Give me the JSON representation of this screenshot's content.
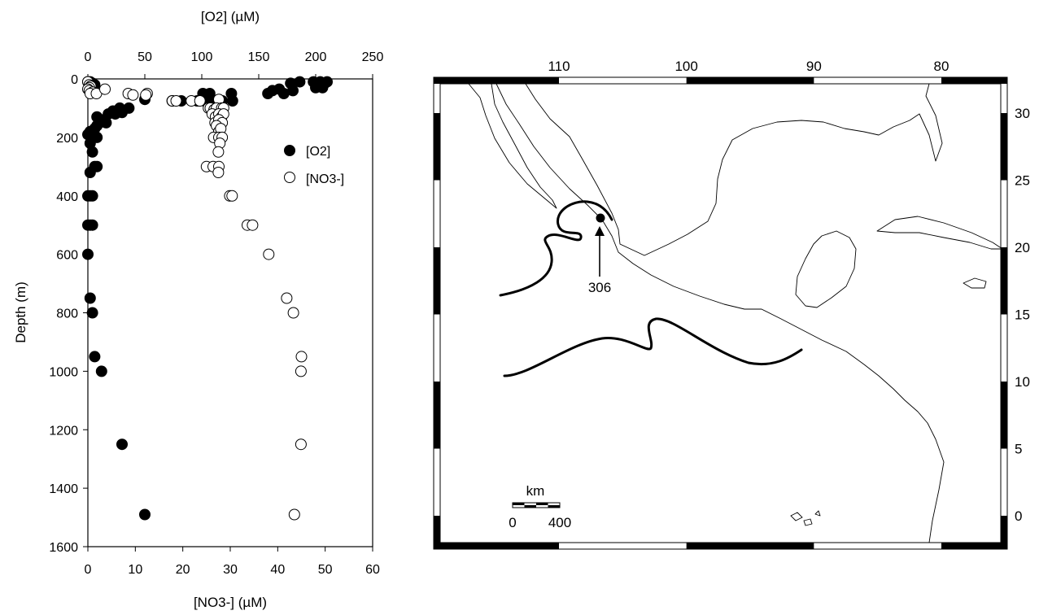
{
  "chart_data": [
    {
      "type": "scatter",
      "x_top_label": "[O2] (µM)",
      "x_bottom_label": "[NO3-] (µM)",
      "ylabel": "Depth (m)",
      "x_top_lim": [
        0,
        250
      ],
      "x_bottom_lim": [
        0,
        60
      ],
      "ylim": [
        1600,
        0
      ],
      "x_top_ticks": [
        "0",
        "50",
        "100",
        "150",
        "200",
        "250"
      ],
      "x_bottom_ticks": [
        "0",
        "10",
        "20",
        "30",
        "40",
        "50",
        "60"
      ],
      "y_ticks": [
        "0",
        "200",
        "400",
        "600",
        "800",
        "1000",
        "1200",
        "1400",
        "1600"
      ],
      "legend": {
        "placement": "right",
        "o2": "[O2]",
        "no3": "[NO3-]"
      },
      "series": [
        {
          "name": "[O2]",
          "axis": "top",
          "marker": "filled",
          "points": [
            [
              0,
              10
            ],
            [
              2,
              10
            ],
            [
              4,
              15
            ],
            [
              6,
              20
            ],
            [
              178,
              15
            ],
            [
              186,
              10
            ],
            [
              198,
              10
            ],
            [
              204,
              10
            ],
            [
              208,
              15
            ],
            [
              210,
              10
            ],
            [
              205,
              25
            ],
            [
              200,
              30
            ],
            [
              206,
              30
            ],
            [
              158,
              50
            ],
            [
              172,
              50
            ],
            [
              162,
              40
            ],
            [
              180,
              40
            ],
            [
              168,
              35
            ],
            [
              101,
              50
            ],
            [
              107,
              50
            ],
            [
              126,
              50
            ],
            [
              74,
              75
            ],
            [
              82,
              75
            ],
            [
              96,
              75
            ],
            [
              102,
              75
            ],
            [
              107,
              75
            ],
            [
              118,
              75
            ],
            [
              127,
              75
            ],
            [
              50,
              70
            ],
            [
              36,
              100
            ],
            [
              28,
              100
            ],
            [
              22,
              110
            ],
            [
              18,
              120
            ],
            [
              24,
              120
            ],
            [
              30,
              115
            ],
            [
              8,
              130
            ],
            [
              12,
              140
            ],
            [
              16,
              150
            ],
            [
              10,
              150
            ],
            [
              8,
              160
            ],
            [
              6,
              170
            ],
            [
              4,
              180
            ],
            [
              2,
              180
            ],
            [
              0,
              190
            ],
            [
              4,
              200
            ],
            [
              8,
              200
            ],
            [
              2,
              220
            ],
            [
              4,
              250
            ],
            [
              6,
              300
            ],
            [
              8,
              300
            ],
            [
              2,
              320
            ],
            [
              4,
              400
            ],
            [
              2,
              400
            ],
            [
              0,
              400
            ],
            [
              2,
              500
            ],
            [
              4,
              500
            ],
            [
              0,
              500
            ],
            [
              0,
              600
            ],
            [
              2,
              750
            ],
            [
              4,
              800
            ],
            [
              6,
              950
            ],
            [
              12,
              1000
            ],
            [
              30,
              1250
            ],
            [
              50,
              1490
            ]
          ]
        },
        {
          "name": "[NO3-]",
          "axis": "bottom",
          "marker": "open",
          "points": [
            [
              0,
              10
            ],
            [
              0.3,
              20
            ],
            [
              0.6,
              25
            ],
            [
              0.3,
              30
            ],
            [
              0,
              35
            ],
            [
              0.3,
              40
            ],
            [
              1,
              45
            ],
            [
              0.5,
              50
            ],
            [
              1.8,
              50
            ],
            [
              3.6,
              35
            ],
            [
              8.5,
              50
            ],
            [
              9.5,
              55
            ],
            [
              12.5,
              50
            ],
            [
              12.2,
              55
            ],
            [
              17.8,
              75
            ],
            [
              18.6,
              75
            ],
            [
              21.8,
              75
            ],
            [
              23.6,
              75
            ],
            [
              27.6,
              70
            ],
            [
              25.4,
              100
            ],
            [
              25.8,
              100
            ],
            [
              26.6,
              105
            ],
            [
              27.1,
              100
            ],
            [
              28.2,
              100
            ],
            [
              28.6,
              100
            ],
            [
              26.2,
              120
            ],
            [
              26.9,
              130
            ],
            [
              27.6,
              120
            ],
            [
              28.2,
              130
            ],
            [
              28.6,
              120
            ],
            [
              26.8,
              150
            ],
            [
              27.6,
              140
            ],
            [
              28.3,
              150
            ],
            [
              27.1,
              160
            ],
            [
              27.6,
              180
            ],
            [
              28.0,
              170
            ],
            [
              26.5,
              200
            ],
            [
              27.6,
              200
            ],
            [
              28.3,
              200
            ],
            [
              27.8,
              220
            ],
            [
              27.5,
              250
            ],
            [
              25.0,
              300
            ],
            [
              26.4,
              300
            ],
            [
              27.6,
              300
            ],
            [
              27.5,
              320
            ],
            [
              29.9,
              400
            ],
            [
              30.4,
              400
            ],
            [
              33.6,
              500
            ],
            [
              34.7,
              500
            ],
            [
              38.1,
              600
            ],
            [
              41.9,
              750
            ],
            [
              43.3,
              800
            ],
            [
              45.0,
              950
            ],
            [
              44.9,
              1000
            ],
            [
              44.9,
              1250
            ],
            [
              43.5,
              1490
            ]
          ]
        }
      ]
    },
    {
      "type": "map",
      "top_ticks": [
        "110",
        "100",
        "90",
        "80"
      ],
      "right_ticks": [
        "30",
        "25",
        "20",
        "15",
        "10",
        "5",
        "0"
      ],
      "station_label": "306",
      "scale_bar": {
        "title": "km",
        "left_label": "0",
        "right_label": "400"
      }
    }
  ]
}
